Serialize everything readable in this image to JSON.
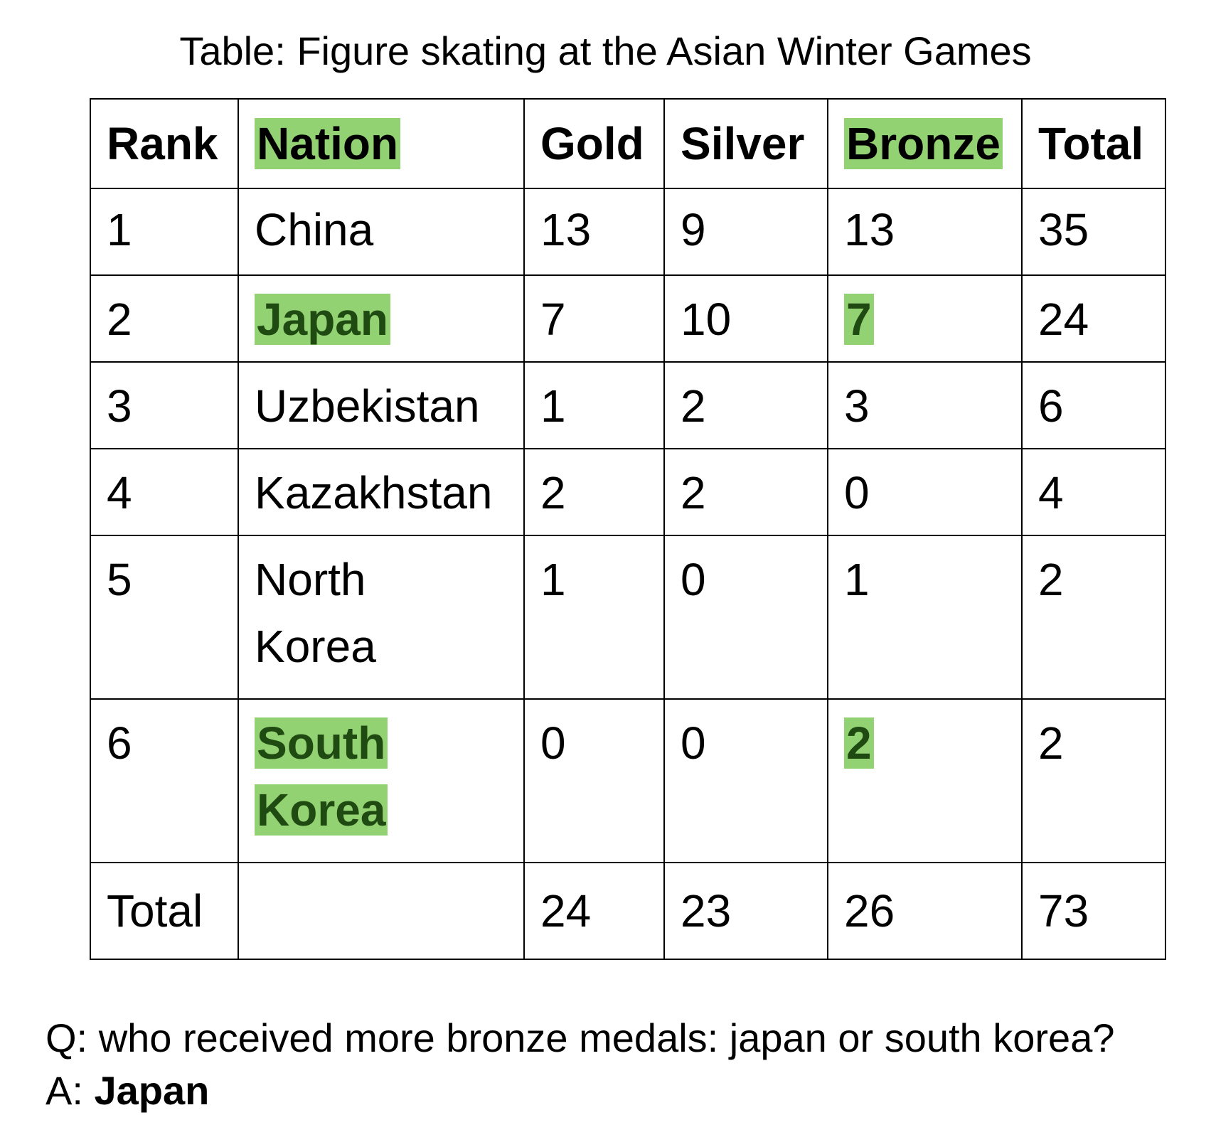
{
  "title": "Table: Figure skating at the Asian Winter Games",
  "table": {
    "headers": [
      "Rank",
      "Nation",
      "Gold",
      "Silver",
      "Bronze",
      "Total"
    ],
    "rows": [
      {
        "rank": "1",
        "nation": "China",
        "gold": "13",
        "silver": "9",
        "bronze": "13",
        "total": "35"
      },
      {
        "rank": "2",
        "nation": "Japan",
        "gold": "7",
        "silver": "10",
        "bronze": "7",
        "total": "24"
      },
      {
        "rank": "3",
        "nation": "Uzbekistan",
        "gold": "1",
        "silver": "2",
        "bronze": "3",
        "total": "6"
      },
      {
        "rank": "4",
        "nation": "Kazakhstan",
        "gold": "2",
        "silver": "2",
        "bronze": "0",
        "total": "4"
      },
      {
        "rank": "5",
        "nation": "North Korea",
        "gold": "1",
        "silver": "0",
        "bronze": "1",
        "total": "2"
      },
      {
        "rank": "6",
        "nation": "South Korea",
        "gold": "0",
        "silver": "0",
        "bronze": "2",
        "total": "2"
      }
    ],
    "total_row": {
      "label": "Total",
      "nation": "",
      "gold": "24",
      "silver": "23",
      "bronze": "26",
      "total": "73"
    }
  },
  "highlights": {
    "color": "#93d273",
    "text_color": "#1f4a12",
    "cells": [
      "header:Nation",
      "header:Bronze",
      "row2:nation",
      "row2:bronze",
      "row6:nation",
      "row6:bronze"
    ]
  },
  "qa": {
    "question_prefix": "Q:",
    "question": "who received more bronze medals: japan or south korea?",
    "answer_prefix": "A:",
    "answer": "Japan"
  }
}
